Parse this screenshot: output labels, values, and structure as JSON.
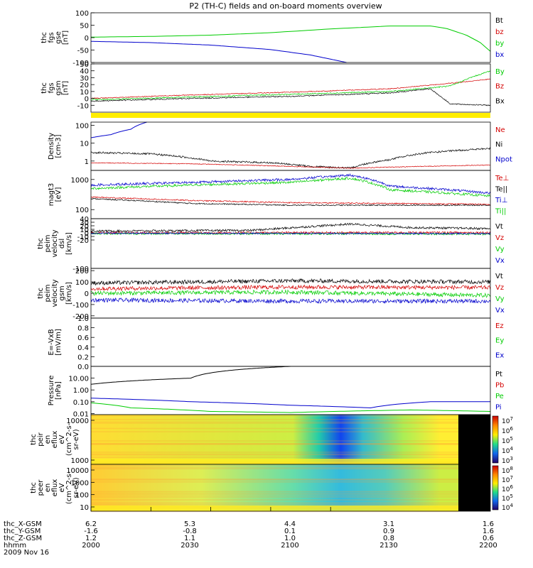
{
  "title": "P2 (TH-C) fields and on-board moments overview",
  "colors": {
    "black": "#000000",
    "red": "#d40000",
    "green": "#00cc00",
    "blue": "#0000cc",
    "yellow": "#ffee00"
  },
  "chart_data": [
    {
      "id": "fgs-gse",
      "type": "line",
      "ylabel": [
        "thc",
        "fgs",
        "gse",
        "[nT]"
      ],
      "ylim": [
        -100,
        100
      ],
      "yticks": [
        "100",
        "50",
        "0",
        "-50",
        "-100"
      ],
      "legend": [
        {
          "name": "Bt",
          "color": "#000000"
        },
        {
          "name": "bz",
          "color": "#d40000"
        },
        {
          "name": "by",
          "color": "#00cc00"
        },
        {
          "name": "bx",
          "color": "#0000cc"
        }
      ],
      "series": [
        {
          "name": "by",
          "color": "#00cc00",
          "noise": 0,
          "t": [
            2000,
            2030,
            2060,
            2090,
            2120,
            2150,
            2170,
            2178,
            2188,
            2195,
            2200
          ],
          "v": [
            2,
            5,
            10,
            20,
            35,
            47,
            47,
            37,
            10,
            -20,
            -55
          ]
        },
        {
          "name": "bx",
          "color": "#0000cc",
          "noise": 0,
          "t": [
            2000,
            2030,
            2060,
            2090,
            2110,
            2125,
            2128
          ],
          "v": [
            -15,
            -20,
            -30,
            -48,
            -70,
            -95,
            -100
          ]
        }
      ]
    },
    {
      "id": "fgs-gsm",
      "type": "line",
      "ylabel": [
        "thc",
        "fgs",
        "gsm",
        "[nT]"
      ],
      "ylim": [
        -20,
        50
      ],
      "yticks": [
        "50",
        "40",
        "30",
        "20",
        "10",
        "0",
        "-10"
      ],
      "legend": [
        {
          "name": "By",
          "color": "#00cc00"
        },
        {
          "name": "Bz",
          "color": "#d40000"
        },
        {
          "name": "Bx",
          "color": "#000000"
        }
      ],
      "series": [
        {
          "name": "Bz",
          "color": "#d40000",
          "noise": 0.6,
          "t": [
            2000,
            2050,
            2100,
            2150,
            2180,
            2200
          ],
          "v": [
            0,
            5,
            9,
            14,
            22,
            28
          ]
        },
        {
          "name": "By",
          "color": "#00cc00",
          "noise": 0.8,
          "t": [
            2000,
            2050,
            2100,
            2150,
            2180,
            2190,
            2200
          ],
          "v": [
            -2,
            2,
            6,
            10,
            18,
            30,
            40
          ]
        },
        {
          "name": "Bx",
          "color": "#000000",
          "noise": 0.8,
          "t": [
            2000,
            2050,
            2100,
            2150,
            2170,
            2180,
            2200
          ],
          "v": [
            -4,
            0,
            3,
            8,
            14,
            -8,
            -10
          ]
        }
      ]
    },
    {
      "id": "density",
      "type": "line",
      "scale": "log",
      "ylabel": [
        "Density",
        "[cm-3]"
      ],
      "ylim": [
        0.3,
        150
      ],
      "yticks": [
        "100",
        "10",
        "1"
      ],
      "legend": [
        {
          "name": "Ne",
          "color": "#d40000"
        },
        {
          "name": "Ni",
          "color": "#000000"
        },
        {
          "name": "Npot",
          "color": "#0000cc"
        }
      ],
      "series": [
        {
          "name": "Ni",
          "color": "#000000",
          "noise": 0.05,
          "t": [
            2000,
            2030,
            2060,
            2090,
            2110,
            2130,
            2150,
            2170,
            2200
          ],
          "v": [
            3,
            2.5,
            1.0,
            0.8,
            0.5,
            0.4,
            1.2,
            3,
            5
          ]
        },
        {
          "name": "Ne",
          "color": "#d40000",
          "noise": 0.02,
          "t": [
            2000,
            2050,
            2100,
            2130,
            2200
          ],
          "v": [
            0.8,
            0.7,
            0.5,
            0.4,
            0.6
          ]
        },
        {
          "name": "Npot",
          "color": "#0000cc",
          "noise": 0,
          "t": [
            2000,
            2010,
            2020,
            2028
          ],
          "v": [
            20,
            30,
            60,
            150
          ]
        }
      ]
    },
    {
      "id": "temperature",
      "type": "line",
      "scale": "log",
      "ylabel": [
        "magt3",
        "[eV]"
      ],
      "ylim": [
        50,
        2000
      ],
      "yticks": [
        "1000",
        "100"
      ],
      "legend": [
        {
          "name": "Te⊥",
          "color": "#d40000"
        },
        {
          "name": "Te||",
          "color": "#000000"
        },
        {
          "name": "Ti⊥",
          "color": "#0000cc"
        },
        {
          "name": "Ti||",
          "color": "#00cc00"
        }
      ],
      "series": [
        {
          "name": "Ti⊥",
          "color": "#0000cc",
          "noise": 0.04,
          "t": [
            2000,
            2050,
            2100,
            2130,
            2150,
            2200
          ],
          "v": [
            650,
            800,
            1000,
            1400,
            600,
            350
          ]
        },
        {
          "name": "Ti||",
          "color": "#00cc00",
          "noise": 0.04,
          "t": [
            2000,
            2050,
            2100,
            2130,
            2150,
            2200
          ],
          "v": [
            500,
            650,
            800,
            1100,
            450,
            280
          ]
        },
        {
          "name": "Te⊥",
          "color": "#d40000",
          "noise": 0.02,
          "t": [
            2000,
            2050,
            2100,
            2200
          ],
          "v": [
            260,
            200,
            170,
            150
          ]
        },
        {
          "name": "Te||",
          "color": "#000000",
          "noise": 0.02,
          "t": [
            2000,
            2050,
            2100,
            2200
          ],
          "v": [
            230,
            160,
            140,
            140
          ]
        }
      ]
    },
    {
      "id": "peim-velocity-dsl",
      "type": "line",
      "ylabel": [
        "thc",
        "peim",
        "velocity",
        "dsl",
        "[km/s]"
      ],
      "ylim": [
        -100,
        40
      ],
      "yticks": [
        "40",
        "30",
        "20",
        "10",
        "0",
        "-10",
        "-20",
        "-100"
      ],
      "legend": [
        {
          "name": "Vt",
          "color": "#000000"
        },
        {
          "name": "Vz",
          "color": "#d40000"
        },
        {
          "name": "Vy",
          "color": "#00cc00"
        },
        {
          "name": "Vx",
          "color": "#0000cc"
        }
      ],
      "series": [
        {
          "name": "Vt",
          "color": "#000000",
          "noise": 3,
          "t": [
            2000,
            2080,
            2110,
            2130,
            2160,
            2200
          ],
          "v": [
            5,
            7,
            18,
            25,
            15,
            12
          ]
        },
        {
          "name": "Vz",
          "color": "#d40000",
          "noise": 3,
          "t": [
            2000,
            2200
          ],
          "v": [
            0,
            1
          ]
        },
        {
          "name": "Vy",
          "color": "#00cc00",
          "noise": 3,
          "t": [
            2000,
            2200
          ],
          "v": [
            -2,
            -3
          ]
        },
        {
          "name": "Vx",
          "color": "#0000cc",
          "noise": 2,
          "t": [
            2000,
            2200
          ],
          "v": [
            -1,
            -2
          ]
        }
      ]
    },
    {
      "id": "peim-velocity-gsm",
      "type": "line",
      "ylabel": [
        "thc",
        "peim",
        "velocity",
        "gsm",
        "[km/s]"
      ],
      "ylim": [
        -220,
        220
      ],
      "yticks": [
        "200",
        "100",
        "0",
        "-100",
        "-200"
      ],
      "legend": [
        {
          "name": "Vt",
          "color": "#000000"
        },
        {
          "name": "Vz",
          "color": "#d40000"
        },
        {
          "name": "Vy",
          "color": "#00cc00"
        },
        {
          "name": "Vx",
          "color": "#0000cc"
        }
      ],
      "series": [
        {
          "name": "Vt",
          "color": "#000000",
          "noise": 18,
          "t": [
            2000,
            2100,
            2200
          ],
          "v": [
            90,
            110,
            100
          ]
        },
        {
          "name": "Vz",
          "color": "#d40000",
          "noise": 18,
          "t": [
            2000,
            2100,
            2200
          ],
          "v": [
            40,
            55,
            50
          ]
        },
        {
          "name": "Vy",
          "color": "#00cc00",
          "noise": 18,
          "t": [
            2000,
            2100,
            2200
          ],
          "v": [
            0,
            10,
            -20
          ]
        },
        {
          "name": "Vx",
          "color": "#0000cc",
          "noise": 18,
          "t": [
            2000,
            2100,
            2200
          ],
          "v": [
            -60,
            -70,
            -70
          ]
        }
      ]
    },
    {
      "id": "e-field",
      "type": "line",
      "ylabel": [
        "E=-VxB",
        "[mV/m]"
      ],
      "ylim": [
        0,
        1
      ],
      "yticks": [
        "1.0",
        "0.8",
        "0.6",
        "0.4",
        "0.2",
        "0.0"
      ],
      "legend": [
        {
          "name": "Ez",
          "color": "#d40000"
        },
        {
          "name": "Ey",
          "color": "#00cc00"
        },
        {
          "name": "Ex",
          "color": "#0000cc"
        }
      ],
      "series": []
    },
    {
      "id": "pressure",
      "type": "line",
      "scale": "log",
      "ylabel": [
        "Pressure",
        "[nPa]"
      ],
      "ylim": [
        0.008,
        100
      ],
      "yticks": [
        "10.00",
        "1.00",
        "0.10",
        "0.01"
      ],
      "legend": [
        {
          "name": "Pt",
          "color": "#000000"
        },
        {
          "name": "Pb",
          "color": "#d40000"
        },
        {
          "name": "Pe",
          "color": "#00cc00"
        },
        {
          "name": "Pi",
          "color": "#0000cc"
        }
      ],
      "series": [
        {
          "name": "Pt",
          "color": "#000000",
          "noise": 0,
          "t": [
            2000,
            2050,
            2100
          ],
          "v": [
            3,
            10,
            100
          ]
        },
        {
          "name": "Pi",
          "color": "#0000cc",
          "noise": 0,
          "t": [
            2000,
            2050,
            2100,
            2140,
            2170,
            2200
          ],
          "v": [
            0.2,
            0.1,
            0.05,
            0.03,
            0.1,
            0.1
          ]
        },
        {
          "name": "Pe",
          "color": "#00cc00",
          "noise": 0,
          "t": [
            2000,
            2020,
            2060,
            2100,
            2160,
            2200
          ],
          "v": [
            0.08,
            0.03,
            0.015,
            0.012,
            0.02,
            0.015
          ]
        }
      ]
    },
    {
      "id": "peir-eflux",
      "type": "heatmap",
      "ylabel": [
        "thc",
        "peir",
        "en",
        "eflux",
        "eV",
        "(cm^2-s-",
        "sr-eV)"
      ],
      "yticks": [
        "10000",
        "1000"
      ],
      "colorbar_labels": [
        "10^7",
        "10^6",
        "10^5",
        "10^4",
        "10^3"
      ]
    },
    {
      "id": "peer-eflux",
      "type": "heatmap",
      "ylabel": [
        "thc",
        "peer",
        "en",
        "eflux",
        "eV",
        "(cm^2-s-",
        "sr-eV)"
      ],
      "yticks": [
        "10000",
        "1000",
        "100",
        "10"
      ],
      "colorbar_labels": [
        "10^8",
        "10^7",
        "10^6",
        "10^5",
        "10^4"
      ]
    }
  ],
  "x_axis": {
    "rows": [
      {
        "label": "thc_X-GSM",
        "values": [
          "6.2",
          "5.3",
          "4.4",
          "3.1",
          "1.6"
        ]
      },
      {
        "label": "thc_Y-GSM",
        "values": [
          "-1.6",
          "-0.8",
          "0.1",
          "0.9",
          "1.6"
        ]
      },
      {
        "label": "thc_Z-GSM",
        "values": [
          "1.2",
          "1.1",
          "1.0",
          "0.8",
          "0.6"
        ]
      },
      {
        "label": "hhmm",
        "values": [
          "2000",
          "2030",
          "2100",
          "2130",
          "2200"
        ]
      }
    ],
    "date": "2009 Nov 16",
    "tmin": 2000,
    "tmax": 2200,
    "tick_times": [
      2000,
      2030,
      2060,
      2090,
      2120
    ]
  }
}
